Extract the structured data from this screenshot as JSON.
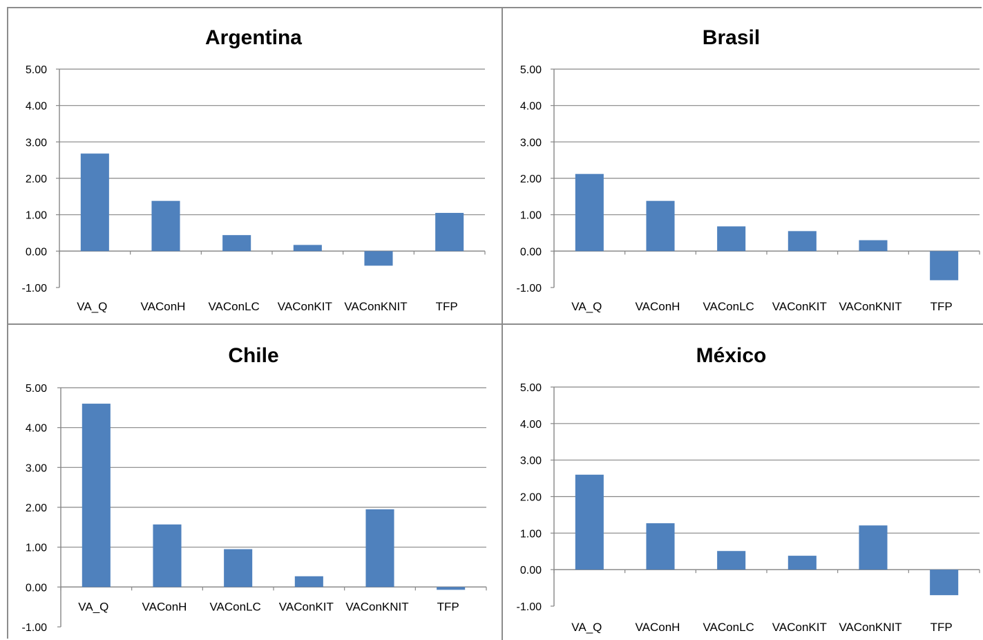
{
  "colors": {
    "bar": "#4f81bd",
    "grid": "#868686",
    "axis": "#868686",
    "text": "#000000"
  },
  "chart_data": [
    {
      "type": "bar",
      "title": "Argentina",
      "categories": [
        "VA_Q",
        "VAConH",
        "VAConLC",
        "VAConKIT",
        "VAConKNIT",
        "TFP"
      ],
      "values": [
        2.68,
        1.38,
        0.44,
        0.17,
        -0.4,
        1.05
      ],
      "ylim": [
        -1,
        5
      ],
      "yticks": [
        "5.00",
        "4.00",
        "3.00",
        "2.00",
        "1.00",
        "0.00",
        "-1.00"
      ],
      "grid": true,
      "legend": "none"
    },
    {
      "type": "bar",
      "title": "Brasil",
      "categories": [
        "VA_Q",
        "VAConH",
        "VAConLC",
        "VAConKIT",
        "VAConKNIT",
        "TFP"
      ],
      "values": [
        2.12,
        1.38,
        0.68,
        0.55,
        0.3,
        -0.8
      ],
      "ylim": [
        -1,
        5
      ],
      "yticks": [
        "5.00",
        "4.00",
        "3.00",
        "2.00",
        "1.00",
        "0.00",
        "-1.00"
      ],
      "grid": true,
      "legend": "none"
    },
    {
      "type": "bar",
      "title": "Chile",
      "categories": [
        "VA_Q",
        "VAConH",
        "VAConLC",
        "VAConKIT",
        "VAConKNIT",
        "TFP"
      ],
      "values": [
        4.6,
        1.57,
        0.95,
        0.27,
        1.95,
        -0.07
      ],
      "ylim": [
        -1,
        5
      ],
      "yticks": [
        "5.00",
        "4.00",
        "3.00",
        "2.00",
        "1.00",
        "0.00",
        "-1.00"
      ],
      "grid": true,
      "legend": "none"
    },
    {
      "type": "bar",
      "title": "México",
      "categories": [
        "VA_Q",
        "VAConH",
        "VAConLC",
        "VAConKIT",
        "VAConKNIT",
        "TFP"
      ],
      "values": [
        2.6,
        1.27,
        0.51,
        0.38,
        1.21,
        -0.7
      ],
      "ylim": [
        -1,
        5
      ],
      "yticks": [
        "5.00",
        "4.00",
        "3.00",
        "2.00",
        "1.00",
        "0.00",
        "-1.00"
      ],
      "grid": true,
      "legend": "none"
    }
  ]
}
